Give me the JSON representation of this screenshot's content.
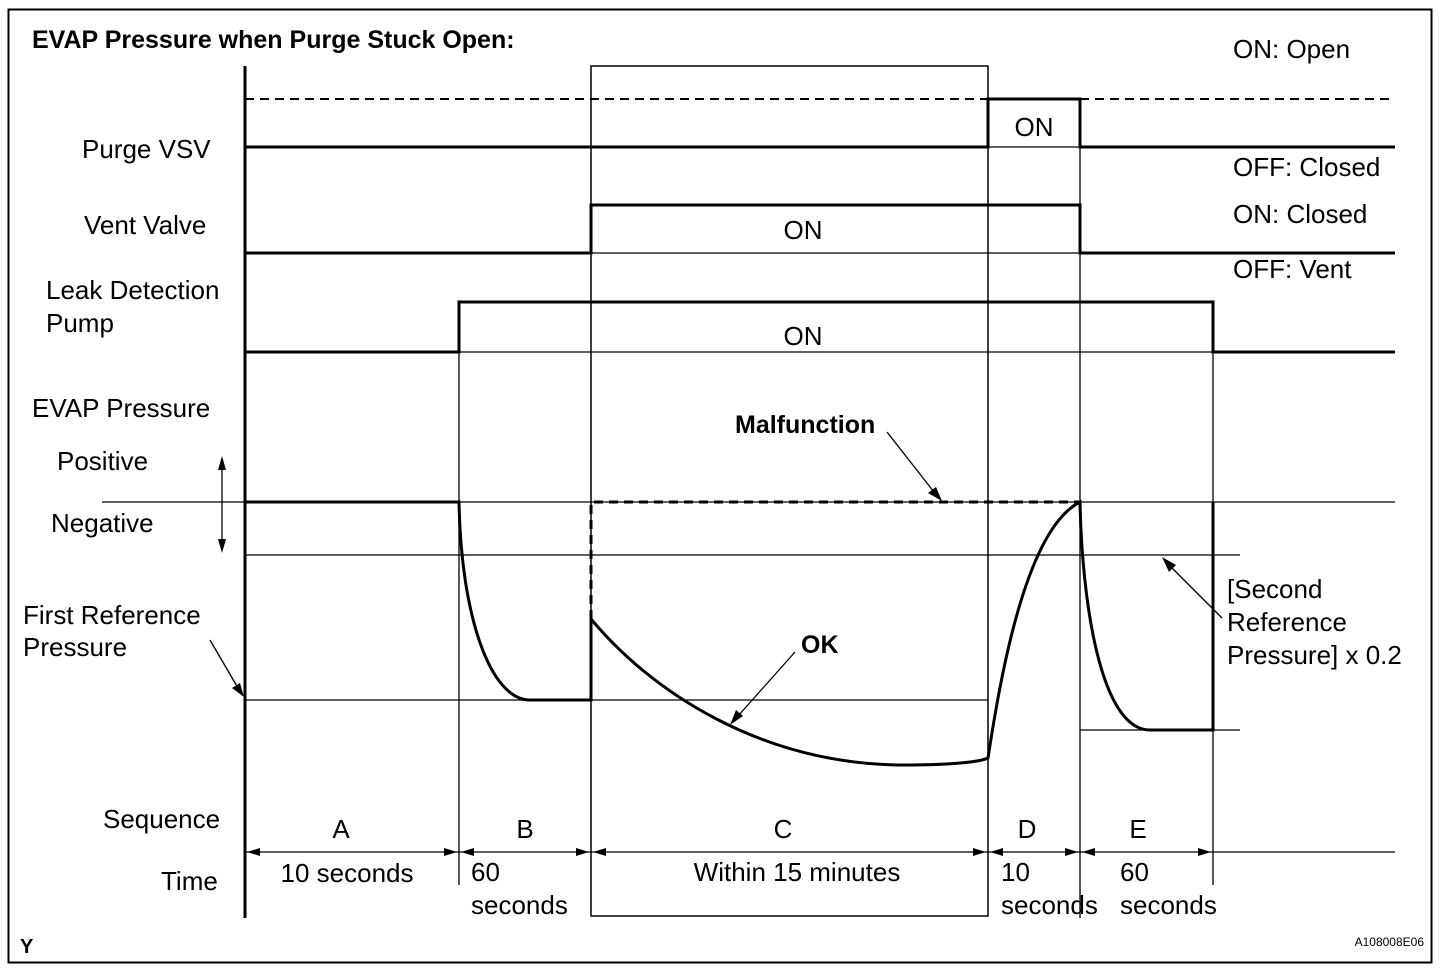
{
  "title": "EVAP Pressure when Purge Stuck Open:",
  "signal_labels": {
    "purge_vsv": "Purge VSV",
    "vent_valve": "Vent Valve",
    "leak_pump_line1": "Leak Detection",
    "leak_pump_line2": "Pump",
    "evap_pressure": "EVAP Pressure",
    "positive": "Positive",
    "negative": "Negative",
    "first_ref_line1": "First Reference",
    "first_ref_line2": "Pressure",
    "sequence": "Sequence",
    "time": "Time"
  },
  "state_labels": {
    "purge_on_open": "ON: Open",
    "purge_off_closed": "OFF: Closed",
    "vent_on_closed": "ON: Closed",
    "vent_off_vent": "OFF: Vent",
    "purge_on": "ON",
    "vent_on": "ON",
    "pump_on": "ON"
  },
  "annotations": {
    "malfunction": "Malfunction",
    "ok": "OK",
    "second_ref_line1": "[Second",
    "second_ref_line2": "Reference",
    "second_ref_line3": "Pressure] x 0.2"
  },
  "sequence": [
    {
      "id": "A",
      "time_line1": "10 seconds",
      "time_line2": ""
    },
    {
      "id": "B",
      "time_line1": "60",
      "time_line2": "seconds"
    },
    {
      "id": "C",
      "time_line1": "Within 15 minutes",
      "time_line2": ""
    },
    {
      "id": "D",
      "time_line1": "10",
      "time_line2": "seconds"
    },
    {
      "id": "E",
      "time_line1": "60",
      "time_line2": "seconds"
    }
  ],
  "footer": {
    "corner_letter": "Y",
    "figure_code": "A108008E06"
  }
}
